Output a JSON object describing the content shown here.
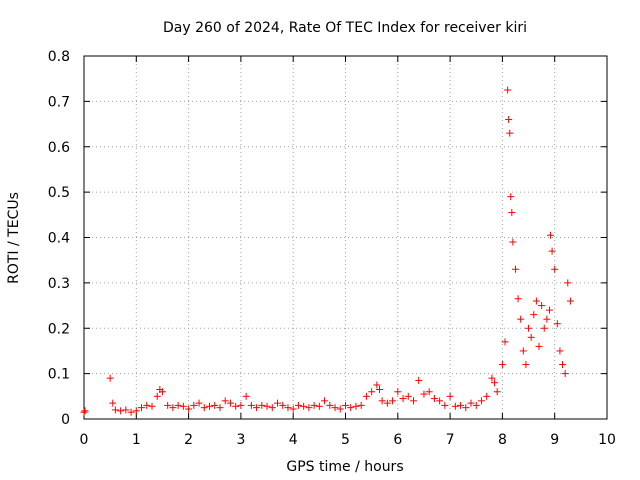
{
  "chart_data": {
    "type": "scatter",
    "title": "Day 260 of 2024, Rate Of TEC Index for receiver kiri",
    "xlabel": "GPS time / hours",
    "ylabel": "ROTI / TECUs",
    "xlim": [
      0,
      10
    ],
    "ylim": [
      0,
      0.8
    ],
    "x_ticks": [
      "0",
      "1",
      "2",
      "3",
      "4",
      "5",
      "6",
      "7",
      "8",
      "9",
      "10"
    ],
    "y_ticks": [
      "0",
      "0.1",
      "0.2",
      "0.3",
      "0.4",
      "0.5",
      "0.6",
      "0.7",
      "0.8"
    ],
    "marker": "+",
    "color": "#ff0000",
    "grid": true,
    "series": [
      {
        "name": "ROTI",
        "x": [
          0.0,
          0.02,
          0.5,
          0.55,
          0.6,
          0.7,
          0.8,
          0.9,
          1.0,
          1.1,
          1.2,
          1.3,
          1.4,
          1.45,
          1.5,
          1.6,
          1.7,
          1.8,
          1.9,
          2.0,
          2.1,
          2.2,
          2.3,
          2.4,
          2.5,
          2.6,
          2.7,
          2.8,
          2.9,
          3.0,
          3.1,
          3.2,
          3.3,
          3.4,
          3.5,
          3.6,
          3.7,
          3.8,
          3.9,
          4.0,
          4.1,
          4.2,
          4.3,
          4.4,
          4.5,
          4.6,
          4.7,
          4.8,
          4.9,
          5.0,
          5.1,
          5.2,
          5.3,
          5.4,
          5.5,
          5.6,
          5.65,
          5.7,
          5.8,
          5.9,
          6.0,
          6.1,
          6.2,
          6.3,
          6.4,
          6.5,
          6.6,
          6.7,
          6.8,
          6.9,
          7.0,
          7.1,
          7.2,
          7.3,
          7.4,
          7.5,
          7.6,
          7.7,
          7.8,
          7.85,
          7.9,
          8.0,
          8.05,
          8.1,
          8.12,
          8.14,
          8.16,
          8.18,
          8.2,
          8.25,
          8.3,
          8.35,
          8.4,
          8.45,
          8.5,
          8.55,
          8.6,
          8.65,
          8.7,
          8.75,
          8.8,
          8.85,
          8.9,
          8.92,
          8.95,
          9.0,
          9.05,
          9.1,
          9.15,
          9.2,
          9.25,
          9.3
        ],
        "y": [
          0.015,
          0.018,
          0.09,
          0.035,
          0.02,
          0.018,
          0.02,
          0.015,
          0.018,
          0.025,
          0.03,
          0.028,
          0.05,
          0.065,
          0.06,
          0.03,
          0.025,
          0.03,
          0.028,
          0.022,
          0.03,
          0.035,
          0.025,
          0.028,
          0.03,
          0.025,
          0.04,
          0.035,
          0.028,
          0.03,
          0.05,
          0.03,
          0.025,
          0.03,
          0.028,
          0.025,
          0.035,
          0.03,
          0.025,
          0.022,
          0.03,
          0.028,
          0.025,
          0.03,
          0.028,
          0.04,
          0.03,
          0.025,
          0.022,
          0.03,
          0.025,
          0.028,
          0.03,
          0.05,
          0.06,
          0.075,
          0.065,
          0.04,
          0.035,
          0.04,
          0.06,
          0.045,
          0.05,
          0.04,
          0.085,
          0.055,
          0.06,
          0.045,
          0.04,
          0.03,
          0.05,
          0.028,
          0.03,
          0.025,
          0.035,
          0.03,
          0.04,
          0.05,
          0.09,
          0.08,
          0.06,
          0.12,
          0.17,
          0.725,
          0.66,
          0.63,
          0.49,
          0.455,
          0.39,
          0.33,
          0.265,
          0.22,
          0.15,
          0.12,
          0.2,
          0.18,
          0.23,
          0.26,
          0.16,
          0.25,
          0.2,
          0.22,
          0.24,
          0.405,
          0.37,
          0.33,
          0.21,
          0.15,
          0.12,
          0.1,
          0.3,
          0.26
        ]
      }
    ]
  }
}
